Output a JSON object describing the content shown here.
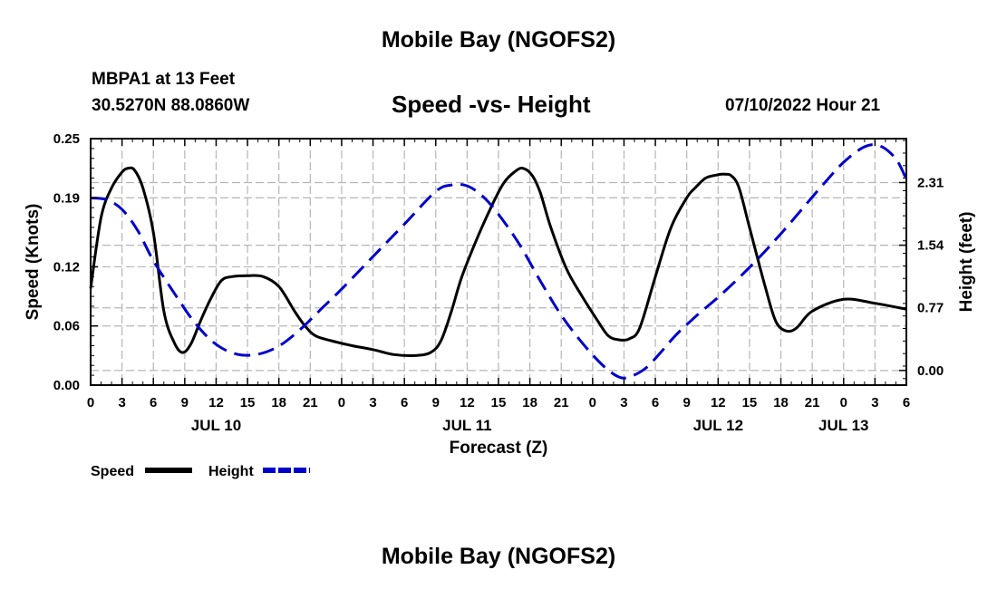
{
  "header": {
    "title": "Mobile Bay (NGOFS2)",
    "station": "MBPA1 at 13 Feet",
    "coords": "30.5270N  88.0860W",
    "subtitle": "Speed -vs- Height",
    "datetime": "07/10/2022 Hour 21",
    "bottom_title": "Mobile Bay (NGOFS2)"
  },
  "chart_data": {
    "type": "line",
    "title": "Speed -vs- Height",
    "xlabel": "Forecast (Z)",
    "ylabel": "Speed (Knots)",
    "y2label": "Height (feet)",
    "x_hour_range": [
      0,
      78
    ],
    "x_tick_labels": [
      "0",
      "3",
      "6",
      "9",
      "12",
      "15",
      "18",
      "21",
      "0",
      "3",
      "6",
      "9",
      "12",
      "15",
      "18",
      "21",
      "0",
      "3",
      "6",
      "9",
      "12",
      "15",
      "18",
      "21",
      "0",
      "3",
      "6"
    ],
    "date_labels": [
      {
        "label": "JUL 10",
        "hour": 12
      },
      {
        "label": "JUL 11",
        "hour": 36
      },
      {
        "label": "JUL 12",
        "hour": 60
      },
      {
        "label": "JUL 13",
        "hour": 72
      }
    ],
    "ylim": [
      0,
      0.25
    ],
    "y_ticks": [
      "0.00",
      "0.06",
      "0.12",
      "0.19",
      "0.25"
    ],
    "y2lim": [
      -0.18,
      2.85
    ],
    "y2_ticks": [
      "0.00",
      "0.77",
      "1.54",
      "2.31"
    ],
    "legend": [
      {
        "name": "Speed",
        "color": "#000000",
        "style": "solid"
      },
      {
        "name": "Height",
        "color": "#0000cc",
        "style": "dashed"
      }
    ],
    "series": [
      {
        "name": "Speed",
        "units": "knots",
        "color": "#000000",
        "hours": [
          0,
          1,
          2,
          3,
          3.6,
          4.2,
          5,
          6,
          7,
          8,
          8.8,
          9.6,
          10.5,
          11.5,
          12.5,
          13.5,
          15,
          16.5,
          18,
          19.5,
          20.5,
          21.5,
          23,
          25,
          27,
          29,
          31,
          32.5,
          33.5,
          34.5,
          35.5,
          37,
          38.5,
          39.5,
          40.5,
          41.3,
          42.2,
          43,
          44,
          45.5,
          47,
          48.5,
          49.5,
          50.5,
          51.5,
          52.5,
          54,
          55.5,
          57,
          57.8,
          58.8,
          59.8,
          60.6,
          61.3,
          62,
          63,
          64.5,
          65.5,
          66.5,
          67.5,
          69,
          72,
          75,
          78
        ],
        "values": [
          0.098,
          0.17,
          0.2,
          0.216,
          0.22,
          0.218,
          0.2,
          0.155,
          0.075,
          0.043,
          0.033,
          0.042,
          0.065,
          0.088,
          0.106,
          0.11,
          0.111,
          0.11,
          0.1,
          0.075,
          0.06,
          0.05,
          0.045,
          0.04,
          0.036,
          0.031,
          0.03,
          0.033,
          0.045,
          0.075,
          0.11,
          0.15,
          0.185,
          0.205,
          0.216,
          0.22,
          0.213,
          0.195,
          0.16,
          0.118,
          0.09,
          0.065,
          0.05,
          0.046,
          0.047,
          0.058,
          0.11,
          0.16,
          0.19,
          0.2,
          0.21,
          0.213,
          0.214,
          0.212,
          0.2,
          0.16,
          0.1,
          0.065,
          0.055,
          0.058,
          0.075,
          0.087,
          0.083,
          0.077
        ]
      },
      {
        "name": "Height",
        "units": "feet",
        "color": "#0000cc",
        "hours": [
          0,
          1.5,
          3,
          4.5,
          6,
          8,
          10,
          12,
          14,
          16,
          18,
          20,
          22,
          24,
          27,
          30,
          33,
          34.5,
          36,
          37.5,
          39,
          41,
          43,
          45,
          47,
          49,
          50.5,
          51.5,
          53,
          54.5,
          56,
          58,
          60,
          62,
          64,
          66,
          68,
          70,
          72,
          74,
          75.5,
          77,
          78
        ],
        "values": [
          2.12,
          2.1,
          1.98,
          1.72,
          1.35,
          0.95,
          0.58,
          0.32,
          0.2,
          0.2,
          0.3,
          0.5,
          0.75,
          1.0,
          1.4,
          1.8,
          2.2,
          2.28,
          2.27,
          2.14,
          1.92,
          1.55,
          1.1,
          0.68,
          0.34,
          0.06,
          -0.08,
          -0.08,
          0.02,
          0.22,
          0.44,
          0.68,
          0.9,
          1.14,
          1.4,
          1.68,
          1.98,
          2.28,
          2.56,
          2.75,
          2.76,
          2.6,
          2.35
        ]
      }
    ]
  }
}
